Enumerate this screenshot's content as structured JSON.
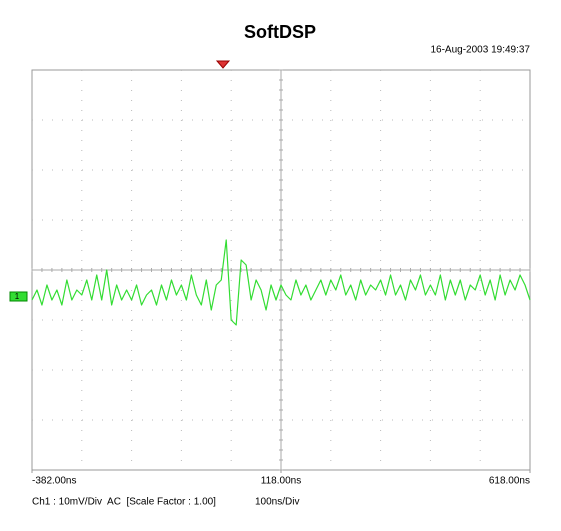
{
  "chart_data": {
    "type": "line",
    "title": "SoftDSP",
    "timestamp": "16-Aug-2003 19:49:37",
    "channel_label": "1",
    "channel_info": "Ch1 : 10mV/Div  AC  [Scale Factor : 1.00]",
    "timebase": "100ns/Div",
    "xlim": [
      -382,
      618
    ],
    "ylim": [
      -40,
      40
    ],
    "xticks": [
      {
        "value": -382,
        "label": "-382.00ns"
      },
      {
        "value": 118,
        "label": "118.00ns"
      },
      {
        "value": 618,
        "label": "618.00ns"
      }
    ],
    "x": [
      -382,
      -372,
      -362,
      -352,
      -342,
      -332,
      -322,
      -312,
      -302,
      -292,
      -282,
      -272,
      -262,
      -252,
      -242,
      -232,
      -222,
      -212,
      -202,
      -192,
      -182,
      -172,
      -162,
      -152,
      -142,
      -132,
      -122,
      -112,
      -102,
      -92,
      -82,
      -72,
      -62,
      -52,
      -42,
      -32,
      -22,
      -12,
      -2,
      8,
      18,
      28,
      38,
      48,
      58,
      68,
      78,
      88,
      98,
      108,
      118,
      128,
      138,
      148,
      158,
      168,
      178,
      188,
      198,
      208,
      218,
      228,
      238,
      248,
      258,
      268,
      278,
      288,
      298,
      308,
      318,
      328,
      338,
      348,
      358,
      368,
      378,
      388,
      398,
      408,
      418,
      428,
      438,
      448,
      458,
      468,
      478,
      488,
      498,
      508,
      518,
      528,
      538,
      548,
      558,
      568,
      578,
      588,
      598,
      608,
      618
    ],
    "series": [
      {
        "color": "#33dd33",
        "values": [
          -6,
          -4,
          -7,
          -3,
          -6,
          -4,
          -7,
          -2,
          -6,
          -4,
          -5,
          -2,
          -6,
          -1,
          -6,
          0,
          -7,
          -3,
          -6,
          -4,
          -6,
          -3,
          -7,
          -5,
          -4,
          -7,
          -3,
          -6,
          -2,
          -5,
          -3,
          -6,
          -1,
          -5,
          -7,
          -2,
          -8,
          -3,
          -2,
          6,
          -10,
          -11,
          2,
          1,
          -6,
          -2,
          -4,
          -8,
          -3,
          -6,
          -3,
          -5,
          -6,
          -2,
          -5,
          -3,
          -6,
          -4,
          -2,
          -5,
          -2,
          -4,
          -1,
          -5,
          -3,
          -6,
          -2,
          -5,
          -3,
          -4,
          -2,
          -5,
          -1,
          -5,
          -3,
          -6,
          -2,
          -4,
          -1,
          -5,
          -3,
          -5,
          -1,
          -6,
          -2,
          -5,
          -2,
          -6,
          -3,
          -4,
          -1,
          -5,
          -2,
          -6,
          -1,
          -5,
          -2,
          -4,
          -1,
          -3,
          -6
        ]
      }
    ]
  }
}
